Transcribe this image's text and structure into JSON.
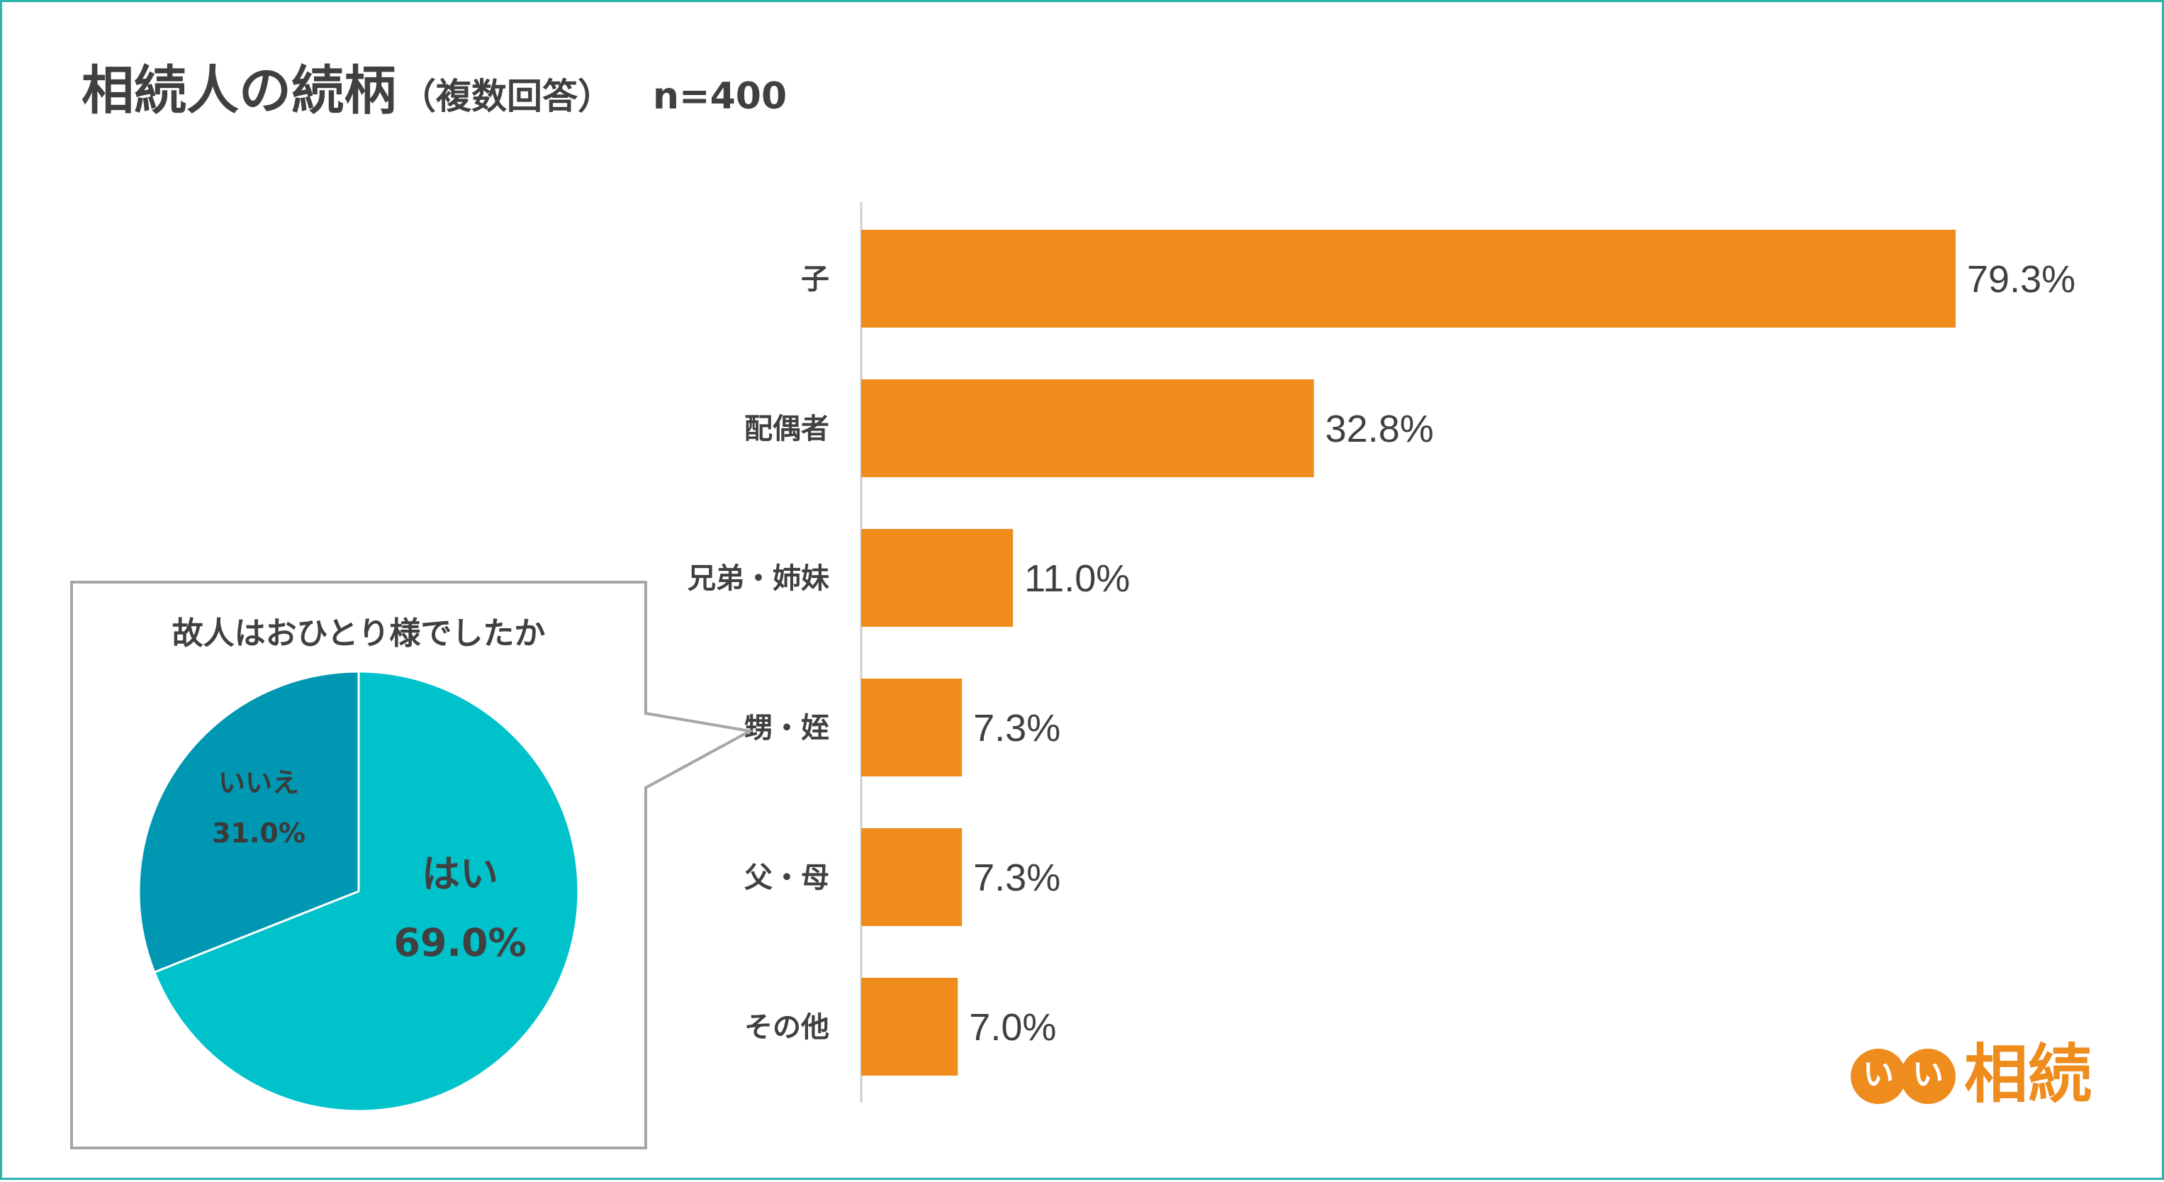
{
  "title": {
    "main": "相続人の続柄",
    "sub": "（複数回答）",
    "n": "n=400"
  },
  "colors": {
    "bar": "#ef8c1b",
    "pie_yes": "#00c2cb",
    "pie_no": "#0097b2",
    "border": "#2bb5ad",
    "logo": "#ee8c1e"
  },
  "chart_data": [
    {
      "type": "bar",
      "orientation": "horizontal",
      "title": "相続人の続柄",
      "categories": [
        "子",
        "配偶者",
        "兄弟・姉妹",
        "甥・姪",
        "父・母",
        "その他"
      ],
      "values": [
        79.3,
        32.8,
        11.0,
        7.3,
        7.3,
        7.0
      ],
      "value_labels": [
        "79.3%",
        "32.8%",
        "11.0%",
        "7.3%",
        "7.3%",
        "7.0%"
      ],
      "xlim": [
        0,
        100
      ],
      "grid": false
    },
    {
      "type": "pie",
      "title": "故人はおひとり様でしたか",
      "slices": [
        {
          "label": "はい",
          "value": 69.0,
          "value_label": "69.0%",
          "color": "#00c2cb"
        },
        {
          "label": "いいえ",
          "value": 31.0,
          "value_label": "31.0%",
          "color": "#0097b2"
        }
      ]
    }
  ],
  "logo": {
    "circle1": "い",
    "circle2": "い",
    "word": "相続"
  }
}
